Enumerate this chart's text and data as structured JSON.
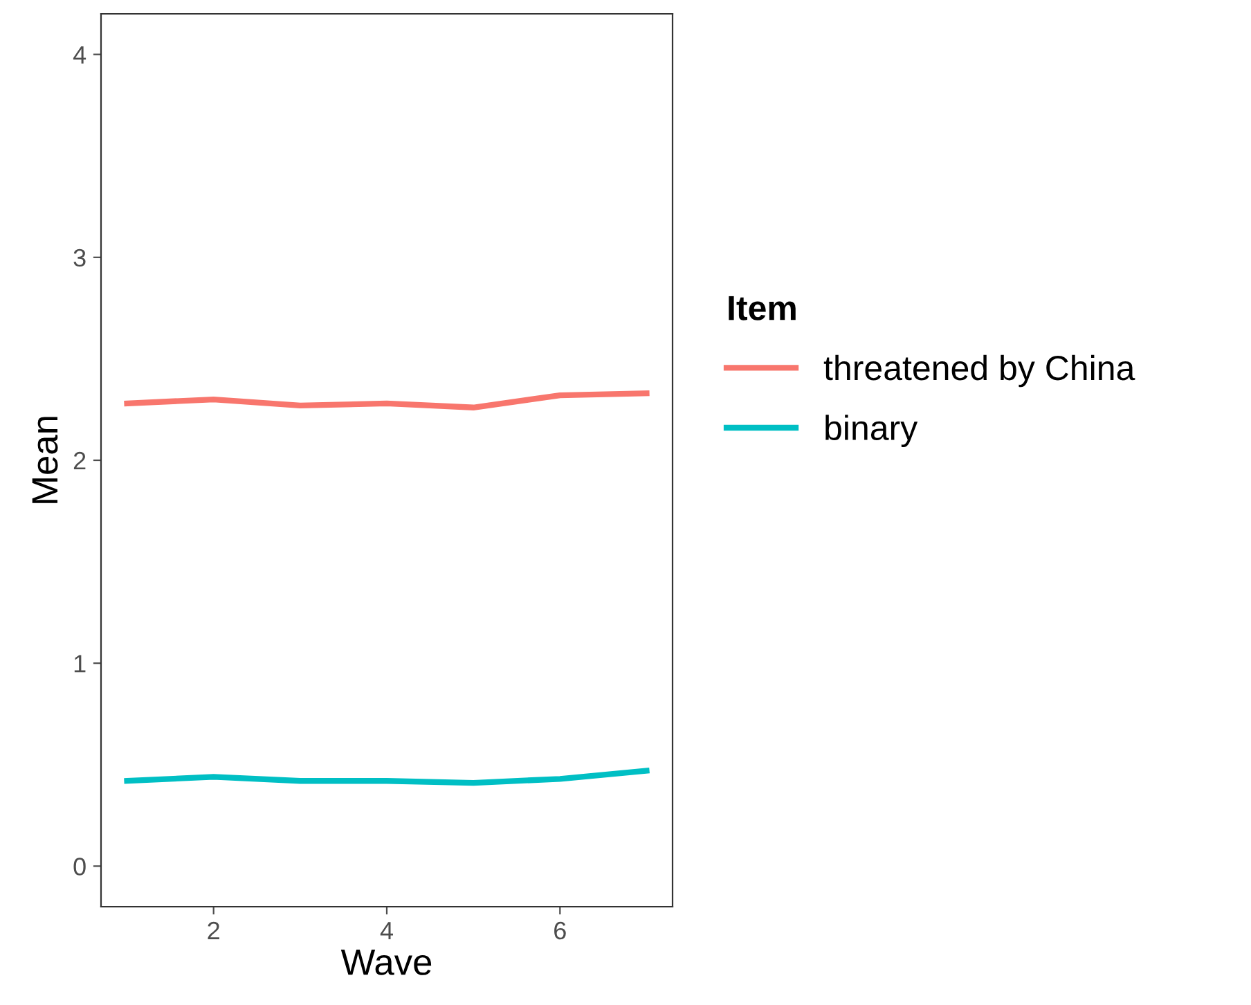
{
  "chart_data": {
    "type": "line",
    "xlabel": "Wave",
    "ylabel": "Mean",
    "legend_title": "Item",
    "x": [
      1,
      2,
      3,
      4,
      5,
      6,
      7
    ],
    "series": [
      {
        "name": "threatened by China",
        "color": "#f8766d",
        "values": [
          2.28,
          2.3,
          2.27,
          2.28,
          2.26,
          2.32,
          2.33
        ]
      },
      {
        "name": "binary",
        "color": "#00bfc4",
        "values": [
          0.42,
          0.44,
          0.42,
          0.42,
          0.41,
          0.43,
          0.47
        ]
      }
    ],
    "xlim": [
      0.7,
      7.3
    ],
    "xticks": [
      2,
      4,
      6
    ],
    "ylim": [
      -0.2,
      4.2
    ],
    "yticks": [
      0,
      1,
      2,
      3,
      4
    ],
    "grid": false,
    "legend": "right",
    "marker": "none",
    "line_style": "solid"
  }
}
